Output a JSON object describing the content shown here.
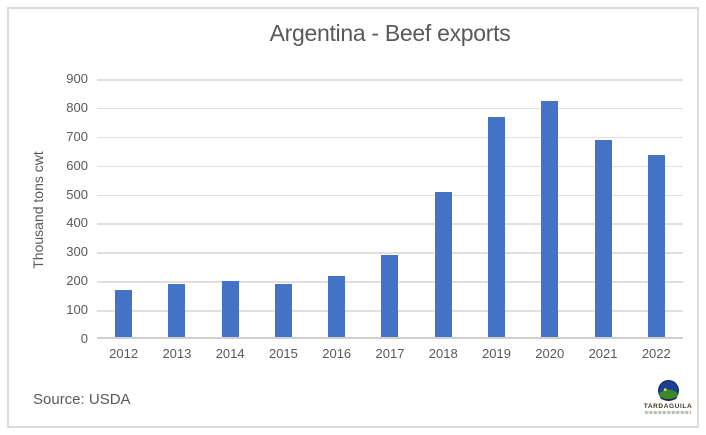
{
  "frame": {
    "background": "#ffffff",
    "border_color": "#dcdcdc"
  },
  "chart_data": {
    "type": "bar",
    "title": "Argentina - Beef exports",
    "xlabel": "",
    "ylabel": "Thousand tons cwt",
    "categories": [
      "2012",
      "2013",
      "2014",
      "2015",
      "2016",
      "2017",
      "2018",
      "2019",
      "2020",
      "2021",
      "2022"
    ],
    "values": [
      162,
      183,
      193,
      183,
      210,
      284,
      501,
      761,
      816,
      683,
      630
    ],
    "ylim": [
      0,
      900
    ],
    "yticks": [
      0,
      100,
      200,
      300,
      400,
      500,
      600,
      700,
      800,
      900
    ],
    "grid": true,
    "legend": "none",
    "bar_color": "#4472c4",
    "gridline_color": "#dfdfdf",
    "axis_text_color": "#595959",
    "title_color": "#595959"
  },
  "footer": {
    "source": "Source: USDA",
    "logo_text": "TARDAGUILA",
    "logo_colors": {
      "sky": "#1c3e94",
      "hill": "#3a8a28",
      "sun": "#ecd943",
      "wordmark": "#4a3424"
    }
  }
}
